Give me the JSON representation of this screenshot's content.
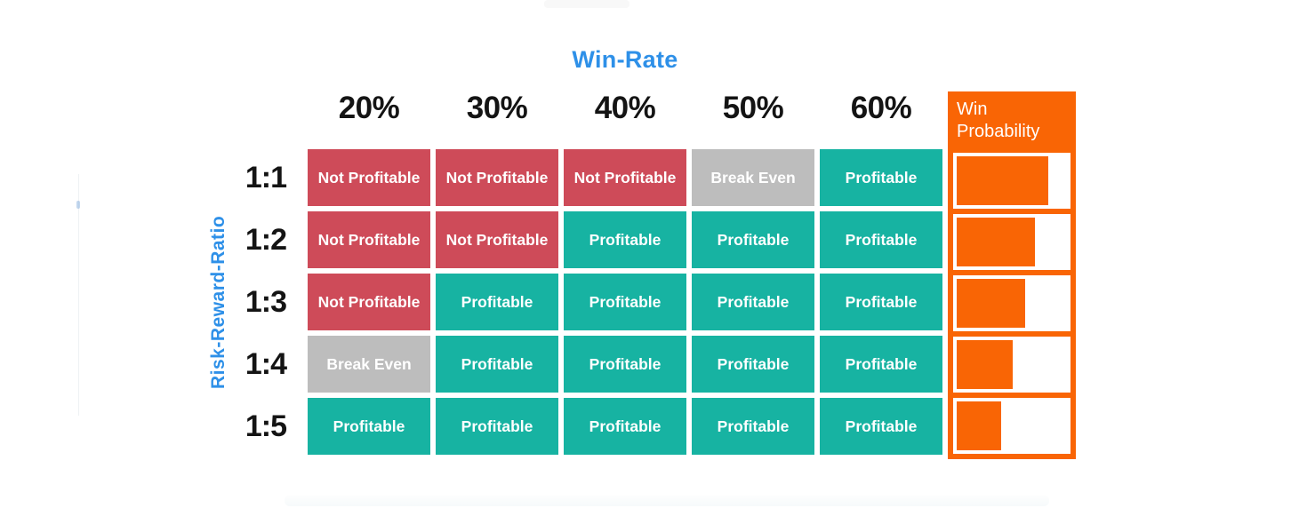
{
  "title": "Win-Rate",
  "colors": {
    "accent_blue": "#2E90E8",
    "not_profitable_red": "#CE4B59",
    "break_even_gray": "#BDBDBD",
    "profitable_teal": "#17B3A2",
    "win_probability_orange": "#F96505",
    "header_text": "#141414",
    "cell_text": "#FFFFFF"
  },
  "chart_data": {
    "type": "heatmap",
    "title": "Win-Rate",
    "xlabel": "Win-Rate",
    "ylabel": "Risk-Reward-Ratio",
    "columns": [
      "20%",
      "30%",
      "40%",
      "50%",
      "60%"
    ],
    "rows": [
      "1:1",
      "1:2",
      "1:3",
      "1:4",
      "1:5"
    ],
    "cells": [
      [
        "Not Profitable",
        "Not Profitable",
        "Not Profitable",
        "Break Even",
        "Profitable"
      ],
      [
        "Not Profitable",
        "Not Profitable",
        "Profitable",
        "Profitable",
        "Profitable"
      ],
      [
        "Not Profitable",
        "Profitable",
        "Profitable",
        "Profitable",
        "Profitable"
      ],
      [
        "Break Even",
        "Profitable",
        "Profitable",
        "Profitable",
        "Profitable"
      ],
      [
        "Profitable",
        "Profitable",
        "Profitable",
        "Profitable",
        "Profitable"
      ]
    ],
    "legend": {
      "Not Profitable": "#CE4B59",
      "Break Even": "#BDBDBD",
      "Profitable": "#17B3A2"
    },
    "win_probability": {
      "label": "Win Probability",
      "bars_percent": [
        78,
        67,
        58,
        48,
        38
      ]
    },
    "layout": {
      "grid": "on-white-gaps",
      "legend_position": "none",
      "bar_column_position": "right"
    }
  }
}
